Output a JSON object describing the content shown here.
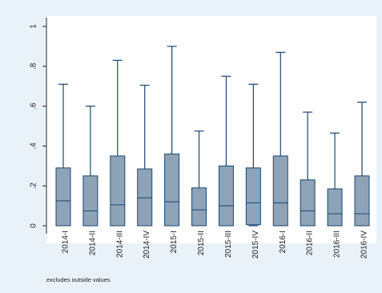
{
  "chart_data": {
    "type": "box",
    "categories": [
      "2014-I",
      "2014-II",
      "2014-III",
      "2014-IV",
      "2015-I",
      "2015-II",
      "2015-III",
      "2015-IV",
      "2016-I",
      "2016-II",
      "2016-III",
      "2016-IV"
    ],
    "boxes": [
      {
        "min": 0,
        "q1": 0,
        "median": 0.125,
        "q3": 0.29,
        "max": 0.71
      },
      {
        "min": 0,
        "q1": 0,
        "median": 0.075,
        "q3": 0.25,
        "max": 0.6
      },
      {
        "min": 0,
        "q1": 0,
        "median": 0.105,
        "q3": 0.35,
        "max": 0.83
      },
      {
        "min": 0,
        "q1": 0,
        "median": 0.14,
        "q3": 0.285,
        "max": 0.705
      },
      {
        "min": 0,
        "q1": 0,
        "median": 0.12,
        "q3": 0.36,
        "max": 0.9
      },
      {
        "min": 0,
        "q1": 0,
        "median": 0.08,
        "q3": 0.19,
        "max": 0.475
      },
      {
        "min": 0,
        "q1": 0,
        "median": 0.1,
        "q3": 0.3,
        "max": 0.75
      },
      {
        "min": 0,
        "q1": 0.005,
        "median": 0.115,
        "q3": 0.29,
        "max": 0.71
      },
      {
        "min": 0,
        "q1": 0,
        "median": 0.115,
        "q3": 0.35,
        "max": 0.87
      },
      {
        "min": 0,
        "q1": 0,
        "median": 0.075,
        "q3": 0.23,
        "max": 0.57
      },
      {
        "min": 0,
        "q1": 0,
        "median": 0.06,
        "q3": 0.185,
        "max": 0.465
      },
      {
        "min": 0,
        "q1": 0,
        "median": 0.06,
        "q3": 0.25,
        "max": 0.62
      }
    ],
    "yticks": [
      0,
      0.2,
      0.4,
      0.6,
      0.8,
      1
    ],
    "ytick_labels": [
      "0",
      ".2",
      ".4",
      ".6",
      ".8",
      "1"
    ],
    "ylim": [
      -0.02,
      1.02
    ],
    "grid": false,
    "note": "excludes outside values",
    "colors": {
      "box_fill": "#8ea3b8",
      "box_stroke": "#1a476f",
      "whisker": "#1a476f",
      "plot_bg": "#ffffff",
      "page_bg": "#eaf2f9"
    }
  }
}
